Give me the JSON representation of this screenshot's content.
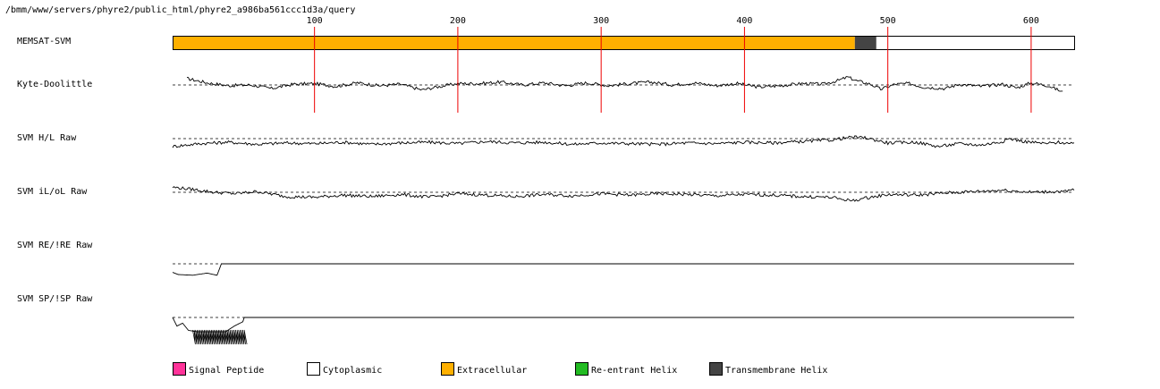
{
  "path": "/bmm/www/servers/phyre2/public_html/phyre2_a986ba561ccc1d3a/query",
  "chart_data": {
    "type": "line",
    "x_axis": {
      "range": [
        1,
        630
      ],
      "ticks": [
        100,
        200,
        300,
        400,
        500,
        600
      ],
      "tick_labels": [
        "100",
        "200",
        "300",
        "400",
        "500",
        "600"
      ]
    },
    "memsat_track": {
      "label": "MEMSAT-SVM",
      "segments": [
        {
          "start": 1,
          "end": 477,
          "class": "Extracellular"
        },
        {
          "start": 477,
          "end": 492,
          "class": "Transmembrane Helix"
        },
        {
          "start": 492,
          "end": 630,
          "class": "Cytoplasmic"
        }
      ]
    },
    "tracks": [
      {
        "label": "Kyte-Doolittle",
        "x_start": 11,
        "x_end": 622,
        "anchors": [
          [
            11,
            0.45
          ],
          [
            25,
            0.15
          ],
          [
            40,
            -0.05
          ],
          [
            55,
            0.0
          ],
          [
            70,
            -0.25
          ],
          [
            85,
            0.05
          ],
          [
            100,
            0.1
          ],
          [
            115,
            -0.1
          ],
          [
            130,
            0.15
          ],
          [
            145,
            -0.05
          ],
          [
            160,
            0.05
          ],
          [
            175,
            -0.35
          ],
          [
            185,
            -0.15
          ],
          [
            200,
            0.1
          ],
          [
            215,
            0.1
          ],
          [
            230,
            0.2
          ],
          [
            245,
            0.0
          ],
          [
            260,
            0.15
          ],
          [
            275,
            -0.05
          ],
          [
            290,
            0.15
          ],
          [
            305,
            -0.05
          ],
          [
            320,
            0.1
          ],
          [
            335,
            0.2
          ],
          [
            350,
            0.0
          ],
          [
            365,
            0.15
          ],
          [
            380,
            -0.05
          ],
          [
            395,
            0.1
          ],
          [
            410,
            -0.15
          ],
          [
            425,
            -0.05
          ],
          [
            440,
            0.1
          ],
          [
            455,
            0.05
          ],
          [
            465,
            0.3
          ],
          [
            472,
            0.55
          ],
          [
            478,
            0.3
          ],
          [
            488,
            0.05
          ],
          [
            495,
            -0.3
          ],
          [
            505,
            0.05
          ],
          [
            515,
            0.1
          ],
          [
            525,
            -0.15
          ],
          [
            540,
            -0.25
          ],
          [
            550,
            0.05
          ],
          [
            565,
            -0.1
          ],
          [
            580,
            0.05
          ],
          [
            590,
            -0.2
          ],
          [
            600,
            0.15
          ],
          [
            612,
            -0.05
          ],
          [
            622,
            -0.5
          ]
        ]
      },
      {
        "label": "SVM H/L Raw",
        "x_start": 1,
        "x_end": 630,
        "anchors": [
          [
            1,
            -0.55
          ],
          [
            20,
            -0.35
          ],
          [
            40,
            -0.25
          ],
          [
            60,
            -0.4
          ],
          [
            80,
            -0.3
          ],
          [
            100,
            -0.35
          ],
          [
            120,
            -0.25
          ],
          [
            140,
            -0.4
          ],
          [
            160,
            -0.3
          ],
          [
            180,
            -0.25
          ],
          [
            200,
            -0.35
          ],
          [
            220,
            -0.2
          ],
          [
            240,
            -0.3
          ],
          [
            260,
            -0.25
          ],
          [
            280,
            -0.4
          ],
          [
            300,
            -0.3
          ],
          [
            320,
            -0.35
          ],
          [
            340,
            -0.4
          ],
          [
            360,
            -0.3
          ],
          [
            380,
            -0.35
          ],
          [
            400,
            -0.25
          ],
          [
            420,
            -0.3
          ],
          [
            440,
            -0.2
          ],
          [
            460,
            -0.1
          ],
          [
            475,
            0.1
          ],
          [
            485,
            0.05
          ],
          [
            500,
            -0.3
          ],
          [
            520,
            -0.25
          ],
          [
            535,
            -0.55
          ],
          [
            550,
            -0.35
          ],
          [
            565,
            -0.45
          ],
          [
            580,
            -0.2
          ],
          [
            585,
            0.0
          ],
          [
            595,
            -0.2
          ],
          [
            610,
            -0.35
          ],
          [
            620,
            -0.25
          ],
          [
            630,
            -0.4
          ]
        ]
      },
      {
        "label": "SVM iL/oL Raw",
        "x_start": 1,
        "x_end": 630,
        "anchors": [
          [
            1,
            0.35
          ],
          [
            15,
            0.2
          ],
          [
            30,
            0.0
          ],
          [
            45,
            -0.1
          ],
          [
            60,
            0.05
          ],
          [
            80,
            -0.3
          ],
          [
            100,
            -0.35
          ],
          [
            120,
            -0.2
          ],
          [
            140,
            -0.3
          ],
          [
            160,
            -0.15
          ],
          [
            180,
            -0.35
          ],
          [
            200,
            -0.1
          ],
          [
            220,
            -0.2
          ],
          [
            240,
            -0.3
          ],
          [
            260,
            -0.15
          ],
          [
            280,
            -0.25
          ],
          [
            300,
            -0.1
          ],
          [
            320,
            -0.2
          ],
          [
            340,
            -0.1
          ],
          [
            360,
            -0.15
          ],
          [
            380,
            -0.25
          ],
          [
            400,
            -0.15
          ],
          [
            420,
            -0.2
          ],
          [
            440,
            -0.3
          ],
          [
            460,
            -0.35
          ],
          [
            475,
            -0.6
          ],
          [
            485,
            -0.4
          ],
          [
            500,
            -0.15
          ],
          [
            520,
            -0.2
          ],
          [
            540,
            -0.05
          ],
          [
            560,
            0.05
          ],
          [
            580,
            0.15
          ],
          [
            600,
            0.0
          ],
          [
            615,
            0.05
          ],
          [
            625,
            0.05
          ],
          [
            630,
            0.2
          ]
        ]
      },
      {
        "label": "SVM RE/!RE Raw",
        "x_start": 1,
        "x_end": 630,
        "anchors": [
          [
            1,
            -0.6
          ],
          [
            5,
            -0.75
          ],
          [
            15,
            -0.8
          ],
          [
            25,
            -0.65
          ],
          [
            32,
            -0.8
          ],
          [
            35,
            0.0
          ],
          [
            630,
            0.0
          ]
        ]
      },
      {
        "label": "SVM SP/!SP Raw",
        "x_start": 1,
        "x_end": 630,
        "anchors": [
          [
            1,
            0.0
          ],
          [
            4,
            -0.6
          ],
          [
            8,
            -0.4
          ],
          [
            12,
            -0.9
          ],
          [
            18,
            -1.0
          ],
          [
            28,
            -1.0
          ],
          [
            38,
            -1.0
          ],
          [
            44,
            -0.6
          ],
          [
            50,
            -0.3
          ],
          [
            51,
            0.0
          ],
          [
            630,
            0.0
          ]
        ],
        "spikes": [
          15,
          51
        ]
      }
    ],
    "legend": [
      {
        "label": "Signal Peptide",
        "color": "#ff3399"
      },
      {
        "label": "Cytoplasmic",
        "color": "#ffffff"
      },
      {
        "label": "Extracellular",
        "color": "#ffb000"
      },
      {
        "label": "Re-entrant Helix",
        "color": "#22bb22"
      },
      {
        "label": "Transmembrane Helix",
        "color": "#444444"
      }
    ],
    "colors": {
      "tick_line": "#ee0000",
      "trace": "#000000",
      "baseline": "#000000"
    }
  }
}
